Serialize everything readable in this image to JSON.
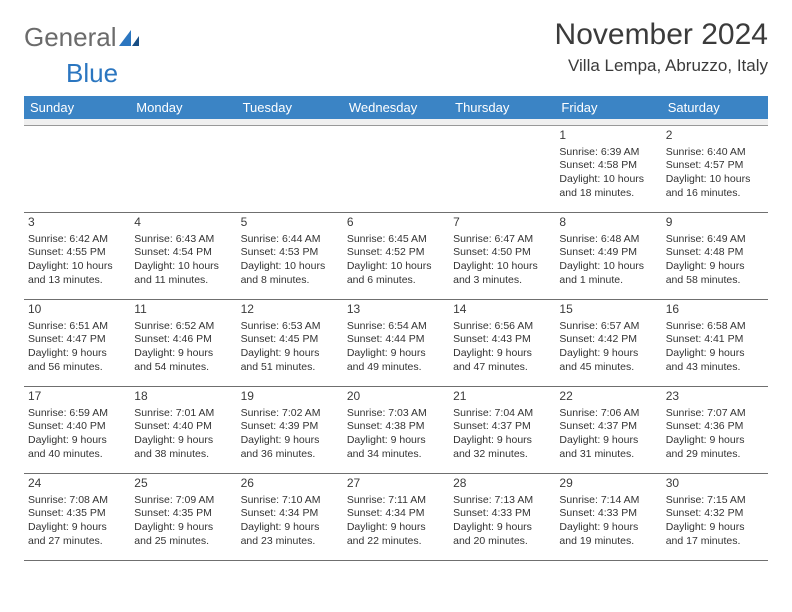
{
  "logo": {
    "general": "General",
    "blue": "Blue"
  },
  "title": "November 2024",
  "location": "Villa Lempa, Abruzzo, Italy",
  "colors": {
    "header_bg": "#3b84c5",
    "header_fg": "#ffffff",
    "spacer_bg": "#f0f0f0",
    "rule": "#6f6f6f",
    "text": "#333333",
    "logo_gray": "#6b6b6b",
    "logo_blue": "#2b76c0",
    "page_bg": "#ffffff"
  },
  "dayHeaders": [
    "Sunday",
    "Monday",
    "Tuesday",
    "Wednesday",
    "Thursday",
    "Friday",
    "Saturday"
  ],
  "weeks": [
    [
      null,
      null,
      null,
      null,
      null,
      {
        "n": "1",
        "sr": "6:39 AM",
        "ss": "4:58 PM",
        "dl": "10 hours and 18 minutes."
      },
      {
        "n": "2",
        "sr": "6:40 AM",
        "ss": "4:57 PM",
        "dl": "10 hours and 16 minutes."
      }
    ],
    [
      {
        "n": "3",
        "sr": "6:42 AM",
        "ss": "4:55 PM",
        "dl": "10 hours and 13 minutes."
      },
      {
        "n": "4",
        "sr": "6:43 AM",
        "ss": "4:54 PM",
        "dl": "10 hours and 11 minutes."
      },
      {
        "n": "5",
        "sr": "6:44 AM",
        "ss": "4:53 PM",
        "dl": "10 hours and 8 minutes."
      },
      {
        "n": "6",
        "sr": "6:45 AM",
        "ss": "4:52 PM",
        "dl": "10 hours and 6 minutes."
      },
      {
        "n": "7",
        "sr": "6:47 AM",
        "ss": "4:50 PM",
        "dl": "10 hours and 3 minutes."
      },
      {
        "n": "8",
        "sr": "6:48 AM",
        "ss": "4:49 PM",
        "dl": "10 hours and 1 minute."
      },
      {
        "n": "9",
        "sr": "6:49 AM",
        "ss": "4:48 PM",
        "dl": "9 hours and 58 minutes."
      }
    ],
    [
      {
        "n": "10",
        "sr": "6:51 AM",
        "ss": "4:47 PM",
        "dl": "9 hours and 56 minutes."
      },
      {
        "n": "11",
        "sr": "6:52 AM",
        "ss": "4:46 PM",
        "dl": "9 hours and 54 minutes."
      },
      {
        "n": "12",
        "sr": "6:53 AM",
        "ss": "4:45 PM",
        "dl": "9 hours and 51 minutes."
      },
      {
        "n": "13",
        "sr": "6:54 AM",
        "ss": "4:44 PM",
        "dl": "9 hours and 49 minutes."
      },
      {
        "n": "14",
        "sr": "6:56 AM",
        "ss": "4:43 PM",
        "dl": "9 hours and 47 minutes."
      },
      {
        "n": "15",
        "sr": "6:57 AM",
        "ss": "4:42 PM",
        "dl": "9 hours and 45 minutes."
      },
      {
        "n": "16",
        "sr": "6:58 AM",
        "ss": "4:41 PM",
        "dl": "9 hours and 43 minutes."
      }
    ],
    [
      {
        "n": "17",
        "sr": "6:59 AM",
        "ss": "4:40 PM",
        "dl": "9 hours and 40 minutes."
      },
      {
        "n": "18",
        "sr": "7:01 AM",
        "ss": "4:40 PM",
        "dl": "9 hours and 38 minutes."
      },
      {
        "n": "19",
        "sr": "7:02 AM",
        "ss": "4:39 PM",
        "dl": "9 hours and 36 minutes."
      },
      {
        "n": "20",
        "sr": "7:03 AM",
        "ss": "4:38 PM",
        "dl": "9 hours and 34 minutes."
      },
      {
        "n": "21",
        "sr": "7:04 AM",
        "ss": "4:37 PM",
        "dl": "9 hours and 32 minutes."
      },
      {
        "n": "22",
        "sr": "7:06 AM",
        "ss": "4:37 PM",
        "dl": "9 hours and 31 minutes."
      },
      {
        "n": "23",
        "sr": "7:07 AM",
        "ss": "4:36 PM",
        "dl": "9 hours and 29 minutes."
      }
    ],
    [
      {
        "n": "24",
        "sr": "7:08 AM",
        "ss": "4:35 PM",
        "dl": "9 hours and 27 minutes."
      },
      {
        "n": "25",
        "sr": "7:09 AM",
        "ss": "4:35 PM",
        "dl": "9 hours and 25 minutes."
      },
      {
        "n": "26",
        "sr": "7:10 AM",
        "ss": "4:34 PM",
        "dl": "9 hours and 23 minutes."
      },
      {
        "n": "27",
        "sr": "7:11 AM",
        "ss": "4:34 PM",
        "dl": "9 hours and 22 minutes."
      },
      {
        "n": "28",
        "sr": "7:13 AM",
        "ss": "4:33 PM",
        "dl": "9 hours and 20 minutes."
      },
      {
        "n": "29",
        "sr": "7:14 AM",
        "ss": "4:33 PM",
        "dl": "9 hours and 19 minutes."
      },
      {
        "n": "30",
        "sr": "7:15 AM",
        "ss": "4:32 PM",
        "dl": "9 hours and 17 minutes."
      }
    ]
  ],
  "labels": {
    "sunrise": "Sunrise: ",
    "sunset": "Sunset: ",
    "daylight": "Daylight: "
  }
}
